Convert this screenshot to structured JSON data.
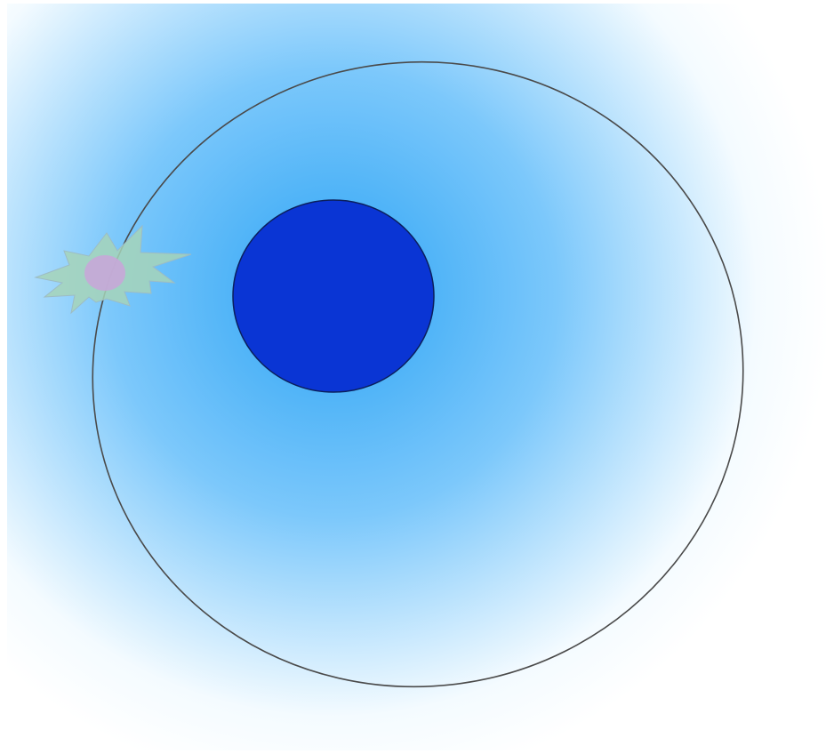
{
  "diagram": {
    "background_colors": {
      "glow_center": "#2da4f5",
      "glow_mid": "#7cc8fb",
      "glow_edge": "#f4fbff",
      "page": "#ffffff"
    },
    "central_body": {
      "fill": "#0a35d4",
      "stroke": "#0b1f5c"
    },
    "orbit": {
      "stroke": "#4a4a4a",
      "fill": "none"
    },
    "orbiting_body": {
      "burst_fill": "#a6d3b8",
      "burst_stroke": "#9dbcc4",
      "core_fill": "#c7a7d8",
      "icon": "starburst-icon"
    }
  }
}
